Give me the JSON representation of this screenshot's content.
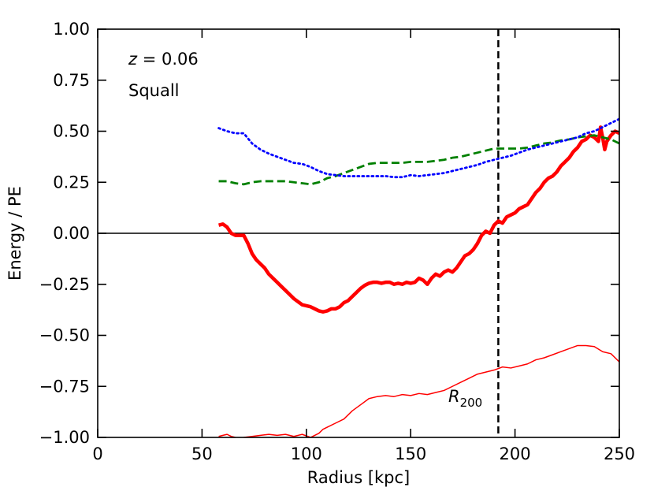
{
  "chart_data": {
    "type": "line",
    "title": "",
    "xlabel": "Radius [kpc]",
    "ylabel": "Energy / PE",
    "xlim": [
      0,
      250
    ],
    "ylim": [
      -1.0,
      1.0
    ],
    "xticks": [
      0,
      50,
      100,
      150,
      200,
      250
    ],
    "xtick_labels": [
      "0",
      "50",
      "100",
      "150",
      "200",
      "250"
    ],
    "yticks": [
      -1.0,
      -0.75,
      -0.5,
      -0.25,
      0.0,
      0.25,
      0.5,
      0.75,
      1.0
    ],
    "ytick_labels": [
      "−1.00",
      "−0.75",
      "−0.50",
      "−0.25",
      "0.00",
      "0.25",
      "0.50",
      "0.75",
      "1.00"
    ],
    "grid": false,
    "annotations": {
      "redshift_var": "z",
      "redshift_rest": " = 0.06",
      "name": "Squall",
      "r200_main": "R",
      "r200_sub": "200"
    },
    "reference_lines": {
      "zero_line_y": 0.0,
      "r200_x": 192
    },
    "series": [
      {
        "name": "thick red",
        "color": "#ff0000",
        "style": "solid-thick",
        "x": [
          58,
          60,
          62,
          64,
          66,
          68,
          70,
          72,
          74,
          76,
          78,
          80,
          82,
          84,
          86,
          88,
          90,
          92,
          94,
          96,
          98,
          100,
          102,
          104,
          106,
          108,
          110,
          112,
          114,
          116,
          118,
          120,
          122,
          124,
          126,
          128,
          130,
          132,
          134,
          136,
          138,
          140,
          142,
          144,
          146,
          148,
          150,
          152,
          154,
          156,
          158,
          160,
          162,
          164,
          166,
          168,
          170,
          172,
          174,
          176,
          178,
          180,
          182,
          184,
          186,
          188,
          190,
          192,
          194,
          196,
          198,
          200,
          202,
          204,
          206,
          208,
          210,
          212,
          214,
          216,
          218,
          220,
          222,
          224,
          226,
          228,
          230,
          232,
          234,
          236,
          238,
          240,
          241,
          242,
          243,
          244,
          246,
          248,
          250
        ],
        "values": [
          0.04,
          0.045,
          0.03,
          0.0,
          -0.01,
          -0.01,
          -0.01,
          -0.05,
          -0.1,
          -0.13,
          -0.15,
          -0.17,
          -0.2,
          -0.22,
          -0.24,
          -0.26,
          -0.28,
          -0.3,
          -0.32,
          -0.335,
          -0.35,
          -0.355,
          -0.36,
          -0.37,
          -0.38,
          -0.385,
          -0.38,
          -0.37,
          -0.37,
          -0.36,
          -0.34,
          -0.33,
          -0.31,
          -0.29,
          -0.27,
          -0.255,
          -0.245,
          -0.24,
          -0.24,
          -0.245,
          -0.24,
          -0.24,
          -0.25,
          -0.245,
          -0.25,
          -0.24,
          -0.245,
          -0.24,
          -0.22,
          -0.23,
          -0.25,
          -0.22,
          -0.2,
          -0.21,
          -0.19,
          -0.18,
          -0.19,
          -0.17,
          -0.14,
          -0.11,
          -0.1,
          -0.08,
          -0.05,
          -0.01,
          0.01,
          0.0,
          0.04,
          0.06,
          0.05,
          0.08,
          0.09,
          0.1,
          0.12,
          0.13,
          0.14,
          0.17,
          0.2,
          0.22,
          0.25,
          0.27,
          0.28,
          0.3,
          0.33,
          0.35,
          0.37,
          0.4,
          0.42,
          0.45,
          0.46,
          0.48,
          0.47,
          0.45,
          0.52,
          0.47,
          0.41,
          0.45,
          0.48,
          0.5,
          0.49
        ]
      },
      {
        "name": "thin red",
        "color": "#ff0000",
        "style": "solid-thin",
        "x": [
          58,
          60,
          62,
          64,
          66,
          68,
          70,
          74,
          78,
          82,
          86,
          90,
          94,
          98,
          102,
          104,
          106,
          108,
          110,
          114,
          118,
          122,
          126,
          130,
          134,
          138,
          142,
          146,
          150,
          154,
          158,
          162,
          166,
          170,
          174,
          178,
          182,
          186,
          190,
          194,
          198,
          202,
          206,
          210,
          214,
          218,
          222,
          226,
          230,
          234,
          238,
          242,
          246,
          250
        ],
        "values": [
          -0.995,
          -0.99,
          -0.985,
          -0.995,
          -1.0,
          -1.01,
          -1.0,
          -0.995,
          -0.99,
          -0.985,
          -0.99,
          -0.985,
          -0.995,
          -0.985,
          -1.0,
          -0.99,
          -0.98,
          -0.96,
          -0.95,
          -0.93,
          -0.91,
          -0.87,
          -0.84,
          -0.81,
          -0.8,
          -0.795,
          -0.8,
          -0.79,
          -0.795,
          -0.785,
          -0.79,
          -0.78,
          -0.77,
          -0.75,
          -0.73,
          -0.71,
          -0.69,
          -0.68,
          -0.67,
          -0.655,
          -0.66,
          -0.65,
          -0.64,
          -0.62,
          -0.61,
          -0.595,
          -0.58,
          -0.565,
          -0.55,
          -0.55,
          -0.555,
          -0.58,
          -0.59,
          -0.63
        ]
      },
      {
        "name": "green dashed",
        "color": "#008000",
        "style": "dashed",
        "x": [
          58,
          62,
          66,
          70,
          74,
          78,
          82,
          86,
          90,
          94,
          98,
          102,
          106,
          110,
          114,
          118,
          122,
          126,
          130,
          134,
          138,
          142,
          146,
          150,
          154,
          158,
          162,
          166,
          170,
          174,
          178,
          182,
          186,
          190,
          194,
          198,
          202,
          206,
          210,
          214,
          218,
          222,
          226,
          230,
          234,
          238,
          242,
          246,
          250
        ],
        "values": [
          0.255,
          0.255,
          0.245,
          0.24,
          0.25,
          0.255,
          0.255,
          0.255,
          0.255,
          0.25,
          0.245,
          0.24,
          0.25,
          0.27,
          0.28,
          0.295,
          0.31,
          0.325,
          0.34,
          0.345,
          0.345,
          0.345,
          0.345,
          0.35,
          0.35,
          0.35,
          0.355,
          0.36,
          0.37,
          0.375,
          0.385,
          0.395,
          0.405,
          0.415,
          0.415,
          0.415,
          0.415,
          0.42,
          0.43,
          0.44,
          0.445,
          0.455,
          0.46,
          0.47,
          0.475,
          0.48,
          0.47,
          0.46,
          0.44
        ]
      },
      {
        "name": "blue dotted",
        "color": "#0000ff",
        "style": "dotted",
        "x": [
          58,
          62,
          66,
          70,
          74,
          78,
          82,
          86,
          90,
          94,
          98,
          102,
          106,
          110,
          114,
          118,
          122,
          126,
          130,
          134,
          138,
          142,
          146,
          150,
          154,
          158,
          162,
          166,
          170,
          174,
          178,
          182,
          186,
          190,
          194,
          198,
          202,
          206,
          210,
          214,
          218,
          222,
          226,
          230,
          234,
          238,
          242,
          246,
          250
        ],
        "values": [
          0.515,
          0.5,
          0.49,
          0.49,
          0.44,
          0.41,
          0.39,
          0.375,
          0.36,
          0.345,
          0.34,
          0.325,
          0.305,
          0.29,
          0.285,
          0.28,
          0.28,
          0.28,
          0.28,
          0.28,
          0.28,
          0.275,
          0.275,
          0.285,
          0.28,
          0.285,
          0.29,
          0.295,
          0.305,
          0.315,
          0.325,
          0.335,
          0.35,
          0.36,
          0.37,
          0.38,
          0.395,
          0.41,
          0.42,
          0.43,
          0.44,
          0.45,
          0.46,
          0.47,
          0.49,
          0.5,
          0.52,
          0.54,
          0.56
        ]
      }
    ]
  }
}
